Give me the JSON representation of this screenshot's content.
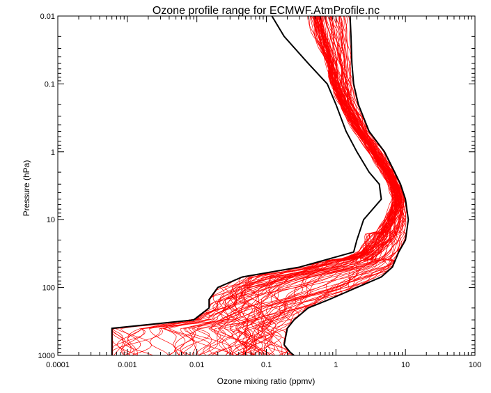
{
  "chart_data": {
    "type": "line",
    "title": "Ozone profile range for ECMWF.AtmProfile.nc",
    "xlabel": "Ozone mixing ratio (ppmv)",
    "ylabel": "Pressure (hPa)",
    "x_scale": "log",
    "y_scale": "log",
    "y_inverted": true,
    "xlim": [
      0.0001,
      100
    ],
    "ylim": [
      1000,
      0.01
    ],
    "x_ticks": [
      "0.0001",
      "0.001",
      "0.01",
      "0.1",
      "1",
      "10",
      "100"
    ],
    "y_ticks": [
      "0.01",
      "0.1",
      "1",
      "10",
      "100",
      "1000"
    ],
    "grid": false,
    "colors": {
      "envelope": "#000000",
      "profiles": "#ff0000"
    },
    "envelope": {
      "min": {
        "pressure": [
          0.01,
          0.02,
          0.05,
          0.1,
          0.2,
          0.5,
          1,
          2,
          3,
          5,
          10,
          20,
          30,
          50,
          70,
          100,
          150,
          200,
          300,
          400,
          700,
          1000
        ],
        "ozone": [
          0.12,
          0.18,
          0.4,
          0.75,
          1.0,
          1.4,
          2.0,
          3.0,
          4.2,
          4.5,
          2.5,
          2.0,
          1.8,
          0.3,
          0.045,
          0.02,
          0.015,
          0.015,
          0.009,
          0.0006,
          0.0006,
          0.0006
        ]
      },
      "max": {
        "pressure": [
          0.01,
          0.02,
          0.05,
          0.1,
          0.2,
          0.5,
          1,
          2,
          3,
          5,
          10,
          20,
          30,
          50,
          70,
          100,
          150,
          200,
          300,
          400,
          700,
          900,
          1000
        ],
        "ozone": [
          1.6,
          1.65,
          1.7,
          1.8,
          2.1,
          3.0,
          5.0,
          7.0,
          8.5,
          10.0,
          11.0,
          10.0,
          8.0,
          6.5,
          4.5,
          2.0,
          0.8,
          0.4,
          0.25,
          0.2,
          0.18,
          0.22,
          0.25
        ]
      }
    },
    "profiles": {
      "count": 80,
      "pressure": [
        0.01,
        0.02,
        0.05,
        0.1,
        0.2,
        0.5,
        1,
        2,
        3,
        5,
        7,
        10,
        20,
        30,
        50,
        70,
        100,
        150,
        200,
        300,
        400,
        500,
        700,
        1000
      ],
      "median_ozone": [
        0.6,
        0.7,
        0.9,
        1.0,
        1.3,
        2.2,
        3.5,
        5.5,
        7.0,
        7.8,
        7.5,
        6.5,
        4.5,
        3.0,
        1.2,
        0.4,
        0.2,
        0.1,
        0.07,
        0.06,
        0.05,
        0.06,
        0.06,
        0.06
      ]
    }
  }
}
